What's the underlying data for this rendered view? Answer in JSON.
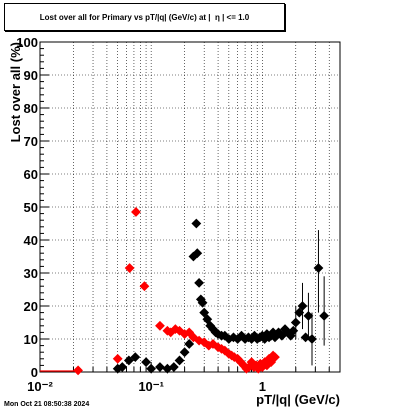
{
  "title": "Lost over all for Primary vs pT/|q| (GeV/c) at |  η | <= 1.0",
  "timestamp": "Mon Oct 21 08:50:38 2024",
  "chart_data": {
    "type": "scatter",
    "title": "Lost over all for Primary vs pT/|q| (GeV/c) at |  η | <= 1.0",
    "xlabel": "pT/|q| (GeV/c)",
    "ylabel": "Lost over all (%)",
    "xscale": "log",
    "xlim": [
      0.01,
      5
    ],
    "ylim": [
      0,
      100
    ],
    "grid": true,
    "x_tick_labels": [
      "10⁻²",
      "10⁻¹",
      "1"
    ],
    "x_tick_values": [
      0.01,
      0.1,
      1
    ],
    "y_tick_labels": [
      "0",
      "10",
      "20",
      "30",
      "40",
      "50",
      "60",
      "70",
      "80",
      "90",
      "100"
    ],
    "y_tick_values": [
      0,
      10,
      20,
      30,
      40,
      50,
      60,
      70,
      80,
      90,
      100
    ],
    "colors": {
      "black_series": "#000000",
      "red_series": "#ff0000"
    },
    "series": [
      {
        "color": "#000000",
        "marker": "diamond",
        "points": [
          {
            "x": 0.05,
            "y": 1
          },
          {
            "x": 0.055,
            "y": 1.5
          },
          {
            "x": 0.063,
            "y": 3.5
          },
          {
            "x": 0.072,
            "y": 4.5
          },
          {
            "x": 0.09,
            "y": 3
          },
          {
            "x": 0.1,
            "y": 1
          },
          {
            "x": 0.12,
            "y": 1.5
          },
          {
            "x": 0.14,
            "y": 1
          },
          {
            "x": 0.16,
            "y": 1.5
          },
          {
            "x": 0.18,
            "y": 3.5
          },
          {
            "x": 0.2,
            "y": 6
          },
          {
            "x": 0.22,
            "y": 8.5
          },
          {
            "x": 0.24,
            "y": 35
          },
          {
            "x": 0.255,
            "y": 45
          },
          {
            "x": 0.26,
            "y": 36
          },
          {
            "x": 0.27,
            "y": 27
          },
          {
            "x": 0.28,
            "y": 22
          },
          {
            "x": 0.29,
            "y": 21
          },
          {
            "x": 0.3,
            "y": 18
          },
          {
            "x": 0.32,
            "y": 16
          },
          {
            "x": 0.34,
            "y": 14
          },
          {
            "x": 0.36,
            "y": 13
          },
          {
            "x": 0.38,
            "y": 12
          },
          {
            "x": 0.4,
            "y": 11.5
          },
          {
            "x": 0.43,
            "y": 11
          },
          {
            "x": 0.46,
            "y": 11
          },
          {
            "x": 0.5,
            "y": 10
          },
          {
            "x": 0.55,
            "y": 10.5
          },
          {
            "x": 0.6,
            "y": 10
          },
          {
            "x": 0.65,
            "y": 11
          },
          {
            "x": 0.7,
            "y": 10
          },
          {
            "x": 0.75,
            "y": 10.5
          },
          {
            "x": 0.8,
            "y": 10
          },
          {
            "x": 0.85,
            "y": 11
          },
          {
            "x": 0.9,
            "y": 10
          },
          {
            "x": 0.95,
            "y": 10.5
          },
          {
            "x": 1.0,
            "y": 11
          },
          {
            "x": 1.05,
            "y": 10
          },
          {
            "x": 1.1,
            "y": 11.5
          },
          {
            "x": 1.15,
            "y": 10.5
          },
          {
            "x": 1.2,
            "y": 11
          },
          {
            "x": 1.25,
            "y": 12
          },
          {
            "x": 1.3,
            "y": 10.5
          },
          {
            "x": 1.4,
            "y": 12
          },
          {
            "x": 1.5,
            "y": 11
          },
          {
            "x": 1.6,
            "y": 13
          },
          {
            "x": 1.7,
            "y": 12
          },
          {
            "x": 1.8,
            "y": 11
          },
          {
            "x": 1.9,
            "y": 12.5
          },
          {
            "x": 2.0,
            "y": 15
          },
          {
            "x": 2.15,
            "y": 18
          },
          {
            "x": 2.3,
            "y": 20
          },
          {
            "x": 2.45,
            "y": 10.5
          },
          {
            "x": 2.6,
            "y": 17
          },
          {
            "x": 2.8,
            "y": 10
          },
          {
            "x": 3.2,
            "y": 31.5
          },
          {
            "x": 3.6,
            "y": 17
          }
        ],
        "error_bars": [
          {
            "x": 2.0,
            "y": 15,
            "lo": 10,
            "hi": 20
          },
          {
            "x": 2.3,
            "y": 20,
            "lo": 13,
            "hi": 27
          },
          {
            "x": 2.6,
            "y": 17,
            "lo": 10,
            "hi": 24
          },
          {
            "x": 2.8,
            "y": 10,
            "lo": 2,
            "hi": 18
          },
          {
            "x": 3.2,
            "y": 31.5,
            "lo": 18,
            "hi": 43
          },
          {
            "x": 3.6,
            "y": 17,
            "lo": 8,
            "hi": 29
          }
        ]
      },
      {
        "color": "#ff0000",
        "marker": "diamond",
        "points": [
          {
            "x": 0.022,
            "y": 0.5
          },
          {
            "x": 0.05,
            "y": 4
          },
          {
            "x": 0.064,
            "y": 31.5
          },
          {
            "x": 0.073,
            "y": 48.5
          },
          {
            "x": 0.087,
            "y": 26
          },
          {
            "x": 0.12,
            "y": 14
          },
          {
            "x": 0.14,
            "y": 12.5
          },
          {
            "x": 0.15,
            "y": 12
          },
          {
            "x": 0.165,
            "y": 13
          },
          {
            "x": 0.18,
            "y": 12.5
          },
          {
            "x": 0.2,
            "y": 11.5
          },
          {
            "x": 0.22,
            "y": 12
          },
          {
            "x": 0.24,
            "y": 10.5
          },
          {
            "x": 0.27,
            "y": 9.5
          },
          {
            "x": 0.3,
            "y": 9
          },
          {
            "x": 0.33,
            "y": 8
          },
          {
            "x": 0.36,
            "y": 8.5
          },
          {
            "x": 0.4,
            "y": 7.5
          },
          {
            "x": 0.43,
            "y": 7
          },
          {
            "x": 0.46,
            "y": 6.5
          },
          {
            "x": 0.5,
            "y": 5.5
          },
          {
            "x": 0.53,
            "y": 5
          },
          {
            "x": 0.56,
            "y": 4.5
          },
          {
            "x": 0.6,
            "y": 4
          },
          {
            "x": 0.64,
            "y": 3
          },
          {
            "x": 0.68,
            "y": 2
          },
          {
            "x": 0.72,
            "y": 1
          },
          {
            "x": 0.76,
            "y": 1.5
          },
          {
            "x": 0.8,
            "y": 3
          },
          {
            "x": 0.84,
            "y": 1.5
          },
          {
            "x": 0.88,
            "y": 2
          },
          {
            "x": 0.92,
            "y": 1
          },
          {
            "x": 0.96,
            "y": 2.5
          },
          {
            "x": 1.0,
            "y": 1.5
          },
          {
            "x": 1.05,
            "y": 3
          },
          {
            "x": 1.1,
            "y": 2
          },
          {
            "x": 1.15,
            "y": 4
          },
          {
            "x": 1.2,
            "y": 3
          },
          {
            "x": 1.25,
            "y": 5
          },
          {
            "x": 1.3,
            "y": 4.5
          }
        ],
        "hlines": [
          {
            "x_from": 0.01,
            "x_to": 0.022,
            "y": 0.3
          }
        ]
      }
    ]
  }
}
